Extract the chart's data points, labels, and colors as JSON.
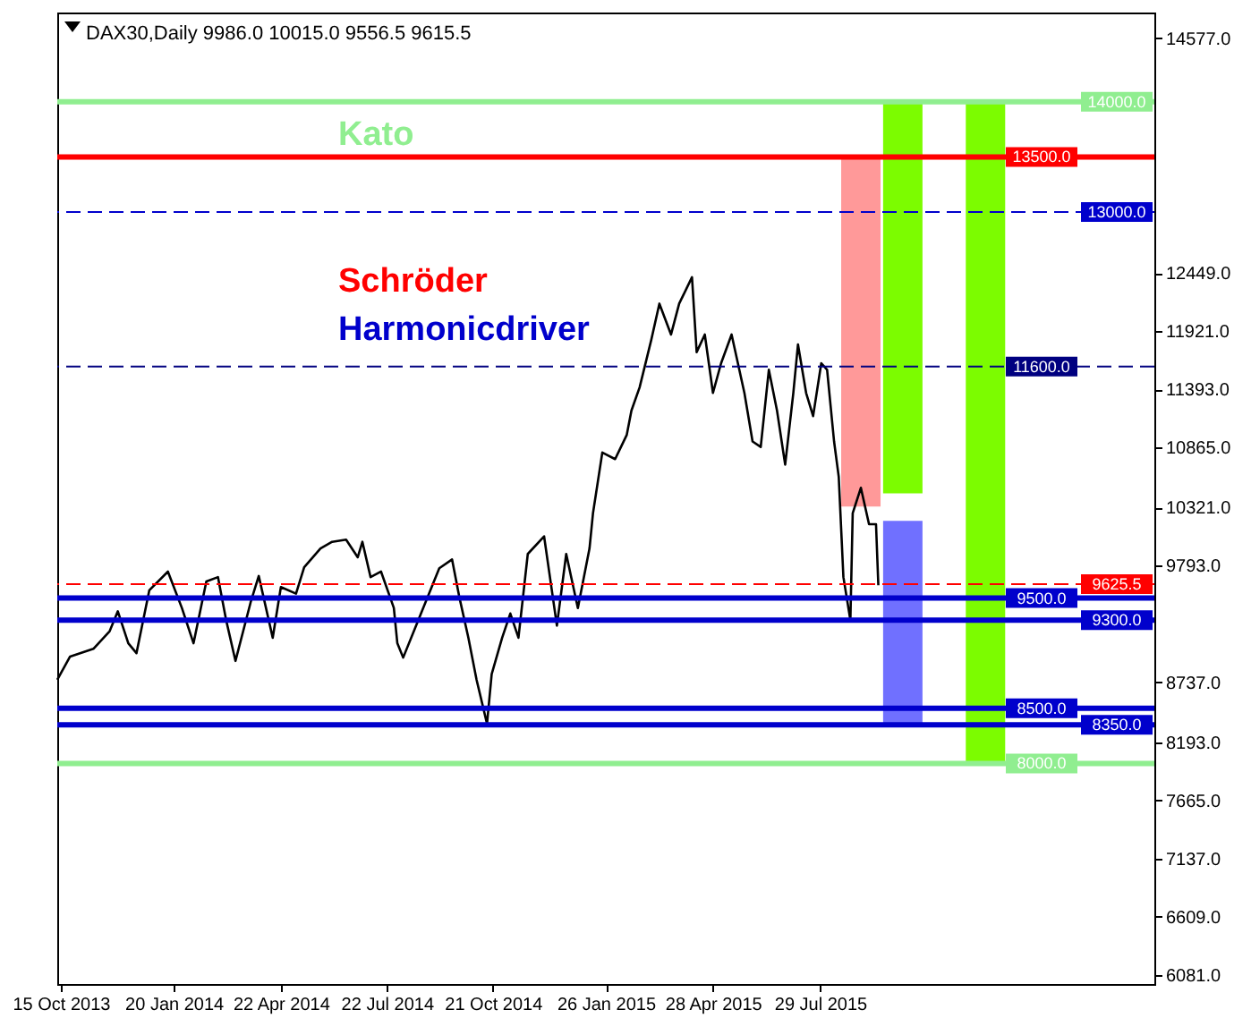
{
  "chart_data": {
    "type": "line",
    "title": "DAX30,Daily  9986.0 10015.0 9556.5 9615.5",
    "annotations": [
      "Kato",
      "Schröder",
      "Harmonicdriver"
    ],
    "xlim": [
      "2013-10-12",
      "2016-05-11"
    ],
    "xticks": [
      {
        "value": "2013-10-15",
        "label": "15 Oct 2013"
      },
      {
        "value": "2014-01-20",
        "label": "20 Jan 2014"
      },
      {
        "value": "2014-04-22",
        "label": "22 Apr 2014"
      },
      {
        "value": "2014-07-22",
        "label": "22 Jul 2014"
      },
      {
        "value": "2014-10-21",
        "label": "21 Oct 2014"
      },
      {
        "value": "2015-01-26",
        "label": "26 Jan 2015"
      },
      {
        "value": "2015-04-28",
        "label": "28 Apr 2015"
      },
      {
        "value": "2015-07-29",
        "label": "29 Jul 2015"
      }
    ],
    "ylim": [
      6000,
      14810
    ],
    "yticks": [
      {
        "value": 14577,
        "label": "14577.0"
      },
      {
        "value": 12449,
        "label": "12449.0"
      },
      {
        "value": 11921,
        "label": "11921.0"
      },
      {
        "value": 11393,
        "label": "11393.0"
      },
      {
        "value": 10865,
        "label": "10865.0"
      },
      {
        "value": 10321,
        "label": "10321.0"
      },
      {
        "value": 9793,
        "label": "9793.0"
      },
      {
        "value": 8737,
        "label": "8737.0"
      },
      {
        "value": 8193,
        "label": "8193.0"
      },
      {
        "value": 7665,
        "label": "7665.0"
      },
      {
        "value": 7137,
        "label": "7137.0"
      },
      {
        "value": 6609,
        "label": "6609.0"
      },
      {
        "value": 6081,
        "label": "6081.0"
      }
    ],
    "grid": false,
    "legend": false,
    "marker": "none",
    "series": [
      {
        "color": "#000000",
        "line_style": "solid",
        "x": [
          "2013-10-12",
          "2013-10-23",
          "2013-11-12",
          "2013-11-26",
          "2013-12-03",
          "2013-12-12",
          "2013-12-19",
          "2013-12-30",
          "2014-01-15",
          "2014-01-27",
          "2014-02-06",
          "2014-02-17",
          "2014-02-27",
          "2014-03-06",
          "2014-03-14",
          "2014-03-27",
          "2014-04-03",
          "2014-04-15",
          "2014-04-22",
          "2014-05-05",
          "2014-05-12",
          "2014-05-26",
          "2014-06-05",
          "2014-06-17",
          "2014-06-27",
          "2014-07-01",
          "2014-07-08",
          "2014-07-17",
          "2014-07-28",
          "2014-07-31",
          "2014-08-05",
          "2014-08-18",
          "2014-09-05",
          "2014-09-16",
          "2014-09-22",
          "2014-09-30",
          "2014-10-07",
          "2014-10-16",
          "2014-10-20",
          "2014-10-29",
          "2014-11-05",
          "2014-11-12",
          "2014-11-20",
          "2014-12-04",
          "2014-12-15",
          "2014-12-23",
          "2015-01-02",
          "2015-01-12",
          "2015-01-15",
          "2015-01-23",
          "2015-02-03",
          "2015-02-13",
          "2015-02-17",
          "2015-02-24",
          "2015-03-06",
          "2015-03-13",
          "2015-03-23",
          "2015-03-30",
          "2015-04-10",
          "2015-04-14",
          "2015-04-21",
          "2015-04-28",
          "2015-05-05",
          "2015-05-14",
          "2015-05-25",
          "2015-06-01",
          "2015-06-08",
          "2015-06-15",
          "2015-06-22",
          "2015-06-29",
          "2015-07-06",
          "2015-07-10",
          "2015-07-17",
          "2015-07-23",
          "2015-07-30",
          "2015-08-04",
          "2015-08-10",
          "2015-08-14",
          "2015-08-18",
          "2015-08-24",
          "2015-08-26",
          "2015-09-02",
          "2015-09-09",
          "2015-09-15",
          "2015-09-17"
        ],
        "values": [
          8760,
          8970,
          9040,
          9200,
          9380,
          9090,
          9000,
          9570,
          9740,
          9410,
          9090,
          9650,
          9690,
          9300,
          8930,
          9460,
          9700,
          9140,
          9600,
          9540,
          9780,
          9950,
          10010,
          10030,
          9870,
          10010,
          9690,
          9740,
          9410,
          9090,
          8960,
          9300,
          9770,
          9850,
          9520,
          9140,
          8760,
          8360,
          8810,
          9140,
          9360,
          9140,
          9900,
          10060,
          9250,
          9900,
          9410,
          9950,
          10270,
          10820,
          10760,
          10980,
          11200,
          11410,
          11840,
          12170,
          11890,
          12170,
          12410,
          11730,
          11890,
          11360,
          11630,
          11890,
          11360,
          10920,
          10870,
          11570,
          11200,
          10710,
          11360,
          11800,
          11360,
          11150,
          11630,
          11570,
          10920,
          10600,
          9690,
          9300,
          10270,
          10500,
          10170,
          10170,
          9615.5
        ]
      },
      {
        "type": "bar",
        "color": "#ff9999",
        "x": [
          "2015-09-02"
        ],
        "base": [
          10330
        ],
        "values": [
          3170
        ]
      },
      {
        "type": "bar",
        "color": "#7cfc00",
        "x": [
          "2015-10-08",
          "2015-12-18"
        ],
        "base": [
          10450,
          8000
        ],
        "values": [
          3550,
          6000
        ]
      },
      {
        "type": "bar",
        "color": "#7070ff",
        "x": [
          "2015-10-08"
        ],
        "base": [
          8340
        ],
        "values": [
          1860
        ]
      }
    ],
    "ref_lines": [
      {
        "axis": "y",
        "value": 14000,
        "label": "14000.0",
        "color": "#90ee90",
        "line_style": "solid"
      },
      {
        "axis": "y",
        "value": 13500,
        "label": "13500.0",
        "color": "#ff0000",
        "line_style": "solid"
      },
      {
        "axis": "y",
        "value": 13000,
        "label": "13000.0",
        "color": "#0000cc",
        "line_style": "dashed"
      },
      {
        "axis": "y",
        "value": 11600,
        "label": "11600.0",
        "color": "#000080",
        "line_style": "dashed"
      },
      {
        "axis": "y",
        "value": 9625.5,
        "label": "9625.5",
        "color": "#ff0000",
        "line_style": "dashed"
      },
      {
        "axis": "y",
        "value": 9500,
        "label": "9500.0",
        "color": "#0000cc",
        "line_style": "solid"
      },
      {
        "axis": "y",
        "value": 9300,
        "label": "9300.0",
        "color": "#0000cc",
        "line_style": "solid"
      },
      {
        "axis": "y",
        "value": 8500,
        "label": "8500.0",
        "color": "#0000cc",
        "line_style": "solid"
      },
      {
        "axis": "y",
        "value": 8350,
        "label": "8350.0",
        "color": "#0000cc",
        "line_style": "solid"
      },
      {
        "axis": "y",
        "value": 8000,
        "label": "8000.0",
        "color": "#90ee90",
        "line_style": "solid"
      }
    ]
  }
}
